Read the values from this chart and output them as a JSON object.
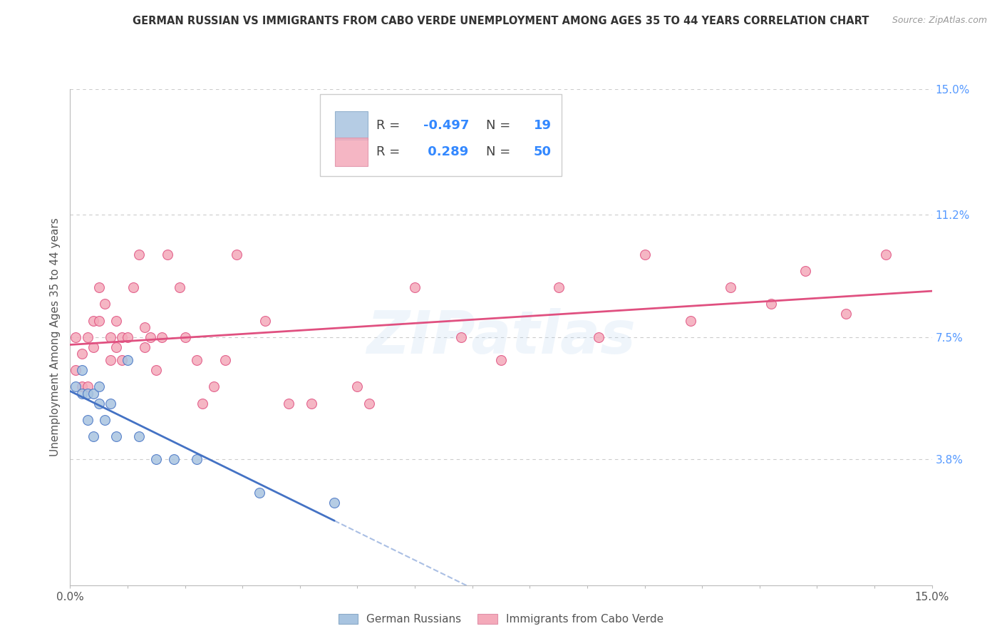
{
  "title": "GERMAN RUSSIAN VS IMMIGRANTS FROM CABO VERDE UNEMPLOYMENT AMONG AGES 35 TO 44 YEARS CORRELATION CHART",
  "source": "Source: ZipAtlas.com",
  "ylabel": "Unemployment Among Ages 35 to 44 years",
  "xlim": [
    0.0,
    0.15
  ],
  "ylim": [
    0.0,
    0.15
  ],
  "ytick_right_labels": [
    "3.8%",
    "7.5%",
    "11.2%",
    "15.0%"
  ],
  "ytick_right_values": [
    0.038,
    0.075,
    0.112,
    0.15
  ],
  "watermark": "ZIPatlas",
  "legend_label1": "German Russians",
  "legend_label2": "Immigrants from Cabo Verde",
  "blue_color": "#A8C4E0",
  "pink_color": "#F4AABA",
  "blue_line_color": "#4472C4",
  "pink_line_color": "#E05080",
  "german_russian_x": [
    0.001,
    0.002,
    0.002,
    0.003,
    0.003,
    0.004,
    0.004,
    0.005,
    0.005,
    0.006,
    0.007,
    0.008,
    0.01,
    0.012,
    0.015,
    0.018,
    0.022,
    0.033,
    0.046
  ],
  "german_russian_y": [
    0.06,
    0.065,
    0.058,
    0.058,
    0.05,
    0.058,
    0.045,
    0.06,
    0.055,
    0.05,
    0.055,
    0.045,
    0.068,
    0.045,
    0.038,
    0.038,
    0.038,
    0.028,
    0.025
  ],
  "cabo_verde_x": [
    0.001,
    0.001,
    0.002,
    0.002,
    0.003,
    0.003,
    0.004,
    0.004,
    0.005,
    0.005,
    0.006,
    0.007,
    0.007,
    0.008,
    0.008,
    0.009,
    0.009,
    0.01,
    0.011,
    0.012,
    0.013,
    0.013,
    0.014,
    0.015,
    0.016,
    0.017,
    0.019,
    0.02,
    0.022,
    0.023,
    0.025,
    0.027,
    0.029,
    0.034,
    0.038,
    0.042,
    0.05,
    0.052,
    0.06,
    0.068,
    0.075,
    0.085,
    0.092,
    0.1,
    0.108,
    0.115,
    0.122,
    0.128,
    0.135,
    0.142
  ],
  "cabo_verde_y": [
    0.065,
    0.075,
    0.06,
    0.07,
    0.06,
    0.075,
    0.08,
    0.072,
    0.08,
    0.09,
    0.085,
    0.075,
    0.068,
    0.08,
    0.072,
    0.075,
    0.068,
    0.075,
    0.09,
    0.1,
    0.078,
    0.072,
    0.075,
    0.065,
    0.075,
    0.1,
    0.09,
    0.075,
    0.068,
    0.055,
    0.06,
    0.068,
    0.1,
    0.08,
    0.055,
    0.055,
    0.06,
    0.055,
    0.09,
    0.075,
    0.068,
    0.09,
    0.075,
    0.1,
    0.08,
    0.09,
    0.085,
    0.095,
    0.082,
    0.1
  ],
  "blue_r": "-0.497",
  "blue_n": "19",
  "pink_r": "0.289",
  "pink_n": "50",
  "gr_line_x0": 0.0,
  "gr_line_x1": 0.046,
  "gr_line_dash_x1": 0.1,
  "cv_line_x0": 0.0,
  "cv_line_x1": 0.15
}
